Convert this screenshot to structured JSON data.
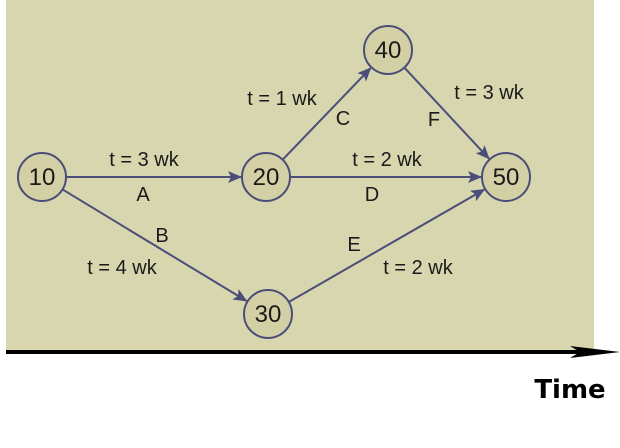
{
  "colors": {
    "background": "#d8d6ae",
    "node_fill": "#d2d0a4",
    "line": "#4a4e78",
    "axis": "#000000"
  },
  "nodes": [
    {
      "id": "10",
      "label": "10"
    },
    {
      "id": "20",
      "label": "20"
    },
    {
      "id": "30",
      "label": "30"
    },
    {
      "id": "40",
      "label": "40"
    },
    {
      "id": "50",
      "label": "50"
    }
  ],
  "edges": [
    {
      "from": "10",
      "to": "20",
      "activity": "A",
      "duration": "t = 3 wk"
    },
    {
      "from": "10",
      "to": "30",
      "activity": "B",
      "duration": "t = 4 wk"
    },
    {
      "from": "20",
      "to": "40",
      "activity": "C",
      "duration": "t = 1 wk"
    },
    {
      "from": "20",
      "to": "50",
      "activity": "D",
      "duration": "t = 2 wk"
    },
    {
      "from": "30",
      "to": "50",
      "activity": "E",
      "duration": "t = 2 wk"
    },
    {
      "from": "40",
      "to": "50",
      "activity": "F",
      "duration": "t = 3 wk"
    }
  ],
  "axis": {
    "label": "Time"
  }
}
